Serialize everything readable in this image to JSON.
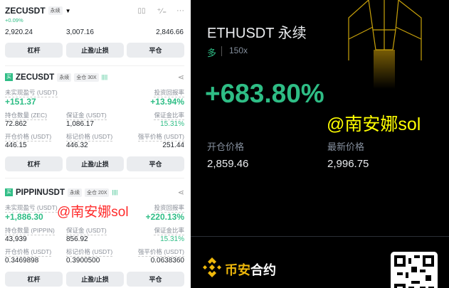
{
  "top": {
    "symbol": "ZECUSDT",
    "type": "永续",
    "change": "+0.09%",
    "values": [
      "2,920.24",
      "3,007.16",
      "2,846.66"
    ]
  },
  "buttons": {
    "leverage": "杠杆",
    "tpsl": "止盈/止损",
    "close": "平仓"
  },
  "positions": [
    {
      "symbol": "ZECUSDT",
      "type": "永续",
      "margin_mode": "全仓 30X",
      "pnl_label": "未实现盈亏 (USDT)",
      "pnl": "+151.37",
      "roe_label": "投资回报率",
      "roe": "+13.94%",
      "qty_label": "持仓数量 (ZEC)",
      "qty": "72.862",
      "margin_label": "保证金 (USDT)",
      "margin": "1,086.17",
      "ratio_label": "保证金比率",
      "ratio": "15.31%",
      "entry_label": "开仓价格 (USDT)",
      "entry": "446.15",
      "mark_label": "标记价格 (USDT)",
      "mark": "446.32",
      "liq_label": "强平价格 (USDT)",
      "liq": "251.44"
    },
    {
      "symbol": "PIPPINUSDT",
      "type": "永续",
      "margin_mode": "全仓 20X",
      "pnl_label": "未实现盈亏 (USDT)",
      "pnl": "+1,886.30",
      "roe_label": "投资回报率",
      "roe": "+220.13%",
      "qty_label": "持仓数量 (PIPPIN)",
      "qty": "43,939",
      "margin_label": "保证金 (USDT)",
      "margin": "856.92",
      "ratio_label": "保证金比率",
      "ratio": "15.31%",
      "entry_label": "开仓价格 (USDT)",
      "entry": "0.3469898",
      "mark_label": "标记价格 (USDT)",
      "mark": "0.3900500",
      "liq_label": "强平价格 (USDT)",
      "liq": "0.0638360"
    }
  ],
  "watermark": "@南安娜sol",
  "share_card": {
    "title": "ETHUSDT 永续",
    "side": "多",
    "leverage": "150x",
    "roe": "+683.80%",
    "entry_label": "开仓价格",
    "entry": "2,859.46",
    "last_label": "最新价格",
    "last": "2,996.75",
    "brand_yellow": "币安",
    "brand_white": "合约"
  },
  "colors": {
    "green": "#2ebd85",
    "brand": "#f0b90b",
    "watermark_red": "#ff2a2a",
    "watermark_yellow": "#ffff00"
  }
}
